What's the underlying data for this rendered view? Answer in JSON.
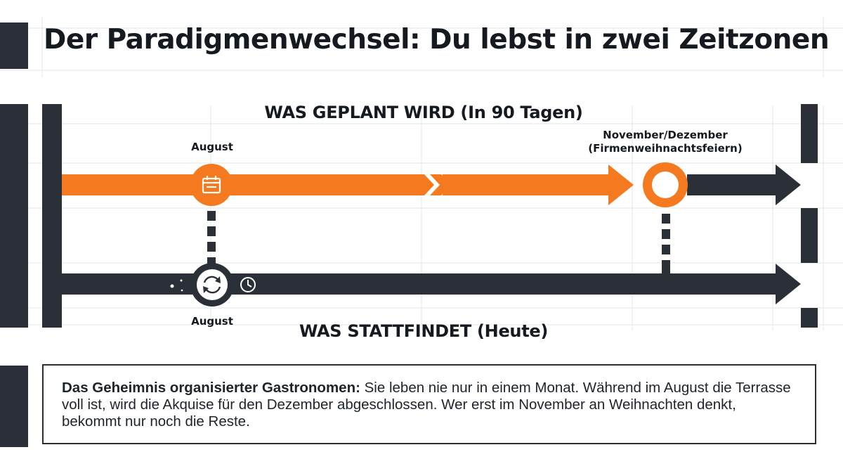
{
  "title": "Der Paradigmenwechsel: Du lebst in zwei Zeitzonen",
  "timeline": {
    "planned_label": "WAS GEPLANT WIRD (In 90 Tagen)",
    "actual_label": "WAS STATTFINDET (Heute)",
    "planned_month_label": "August",
    "actual_month_label": "August",
    "target_label_line1": "November/Dezember",
    "target_label_line2": "(Firmenweihnachtsfeiern)",
    "icons": {
      "planned_node": "calendar-icon",
      "actual_node": "refresh-cycle-icon",
      "left_of_node": "gears-icon",
      "right_of_node": "clock-icon"
    }
  },
  "note": {
    "lead": "Das Geheimnis organisierter Gastronomen:",
    "body": " Sie leben nie nur in einem Monat. Während im August die Terrasse voll ist, wird die Akquise für den Dezember abgeschlossen. Wer erst im November an Weihnachten denkt, bekommt nur noch die Reste."
  },
  "colors": {
    "accent_orange": "#f57a1f",
    "dark": "#2b3038",
    "grid": "#e2e4e7"
  }
}
